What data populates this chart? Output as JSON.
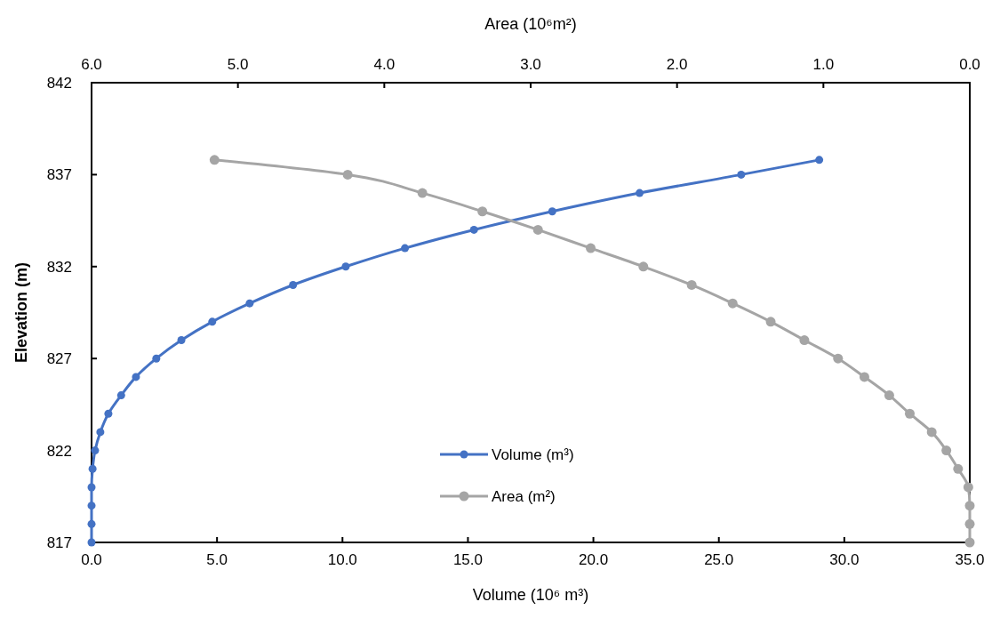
{
  "chart_data": {
    "type": "line",
    "xlabel": "Volume (10⁶ m³)",
    "x2label": "Area (10⁶m²)",
    "ylabel": "Elevation (m)",
    "xlim": [
      0,
      35
    ],
    "xticks": [
      {
        "value": 0,
        "label": "0.0"
      },
      {
        "value": 5,
        "label": "5.0"
      },
      {
        "value": 10,
        "label": "10.0"
      },
      {
        "value": 15,
        "label": "15.0"
      },
      {
        "value": 20,
        "label": "20.0"
      },
      {
        "value": 25,
        "label": "25.0"
      },
      {
        "value": 30,
        "label": "30.0"
      },
      {
        "value": 35,
        "label": "35.0"
      }
    ],
    "x2lim": [
      6,
      0
    ],
    "x2ticks": [
      {
        "value": 6,
        "label": "6.0"
      },
      {
        "value": 5,
        "label": "5.0"
      },
      {
        "value": 4,
        "label": "4.0"
      },
      {
        "value": 3,
        "label": "3.0"
      },
      {
        "value": 2,
        "label": "2.0"
      },
      {
        "value": 1,
        "label": "1.0"
      },
      {
        "value": 0,
        "label": "0.0"
      }
    ],
    "ylim": [
      817,
      842
    ],
    "yticks": [
      817,
      822,
      827,
      832,
      837,
      842
    ],
    "grid": false,
    "legend": "bottom",
    "marker": "circle",
    "line_style": "solid",
    "series": [
      {
        "name": "Volume (m³)",
        "color": "#4472c4",
        "x": [
          0,
          0,
          0,
          0,
          0.04,
          0.14,
          0.35,
          0.67,
          1.18,
          1.77,
          2.58,
          3.58,
          4.81,
          6.3,
          8.03,
          10.13,
          12.49,
          15.24,
          18.36,
          21.84,
          25.89,
          29.0
        ],
        "values": [
          817,
          818,
          819,
          820,
          821,
          822,
          823,
          824,
          825,
          826,
          827,
          828,
          829,
          830,
          831,
          832,
          833,
          834,
          835,
          836,
          837,
          837.8
        ]
      },
      {
        "name": "Area (m²)",
        "color": "#a5a5a5",
        "axis": "x2",
        "x": [
          0,
          0,
          0,
          0.01,
          0.08,
          0.16,
          0.26,
          0.41,
          0.55,
          0.72,
          0.9,
          1.13,
          1.36,
          1.62,
          1.9,
          2.23,
          2.59,
          2.95,
          3.33,
          3.74,
          4.25,
          5.16
        ],
        "values": [
          817,
          818,
          819,
          820,
          821,
          822,
          823,
          824,
          825,
          826,
          827,
          828,
          829,
          830,
          831,
          832,
          833,
          834,
          835,
          836,
          837,
          837.8
        ]
      }
    ]
  }
}
